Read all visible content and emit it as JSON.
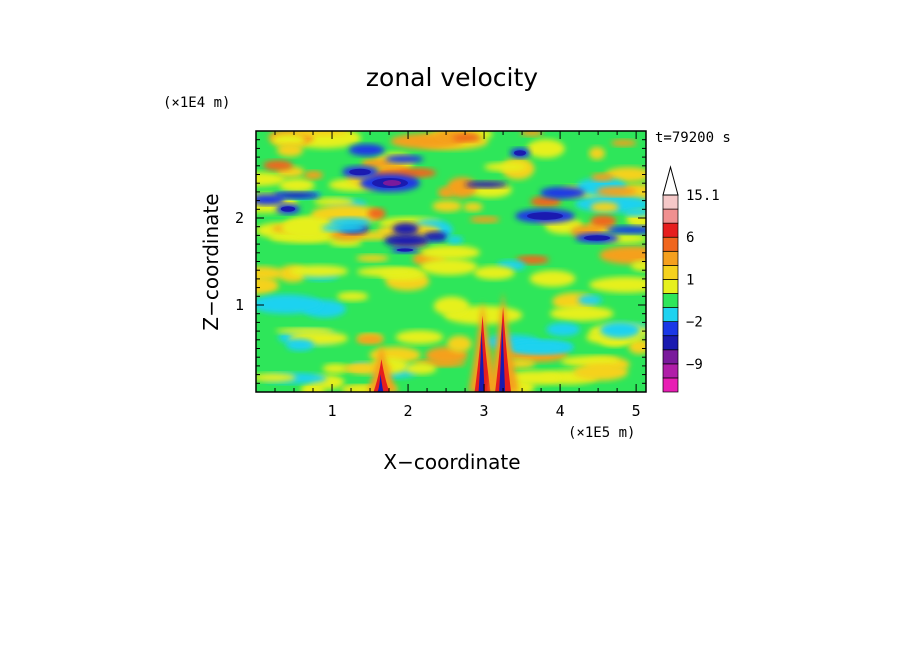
{
  "chart_data": {
    "type": "heatmap",
    "title": "zonal velocity",
    "xlabel": "X−coordinate",
    "ylabel": "Z−coordinate",
    "x_unit": "(×1E5 m)",
    "y_unit": "(×1E4 m)",
    "time_label": "t=79200 s",
    "xlim": [
      0,
      5.13
    ],
    "ylim": [
      0,
      3.0
    ],
    "x_ticks": [
      1,
      2,
      3,
      4,
      5
    ],
    "x_tick_labels": [
      "1",
      "2",
      "3",
      "4",
      "5"
    ],
    "y_ticks": [
      1,
      2
    ],
    "y_tick_labels": [
      "1",
      "2"
    ],
    "colorbar": {
      "levels": [
        -15,
        -12,
        -9,
        -6,
        -4,
        -2,
        -1,
        0,
        1,
        2,
        3,
        6,
        9,
        12,
        15.1
      ],
      "colors": [
        "#e81eb4",
        "#b01ea8",
        "#7a1a9c",
        "#1a1ab0",
        "#1a38e6",
        "#1ed2f0",
        "#2ee65a",
        "#e6f01e",
        "#f5d21e",
        "#f5a01e",
        "#f0661e",
        "#e61e1e",
        "#f09090",
        "#f5c8c8"
      ],
      "labels": [
        {
          "value": 15.1,
          "text": "15.1"
        },
        {
          "value": 6,
          "text": "6"
        },
        {
          "value": 1,
          "text": "1"
        },
        {
          "value": -2,
          "text": "−2"
        },
        {
          "value": -9,
          "text": "−9"
        }
      ],
      "extend": "max"
    }
  }
}
